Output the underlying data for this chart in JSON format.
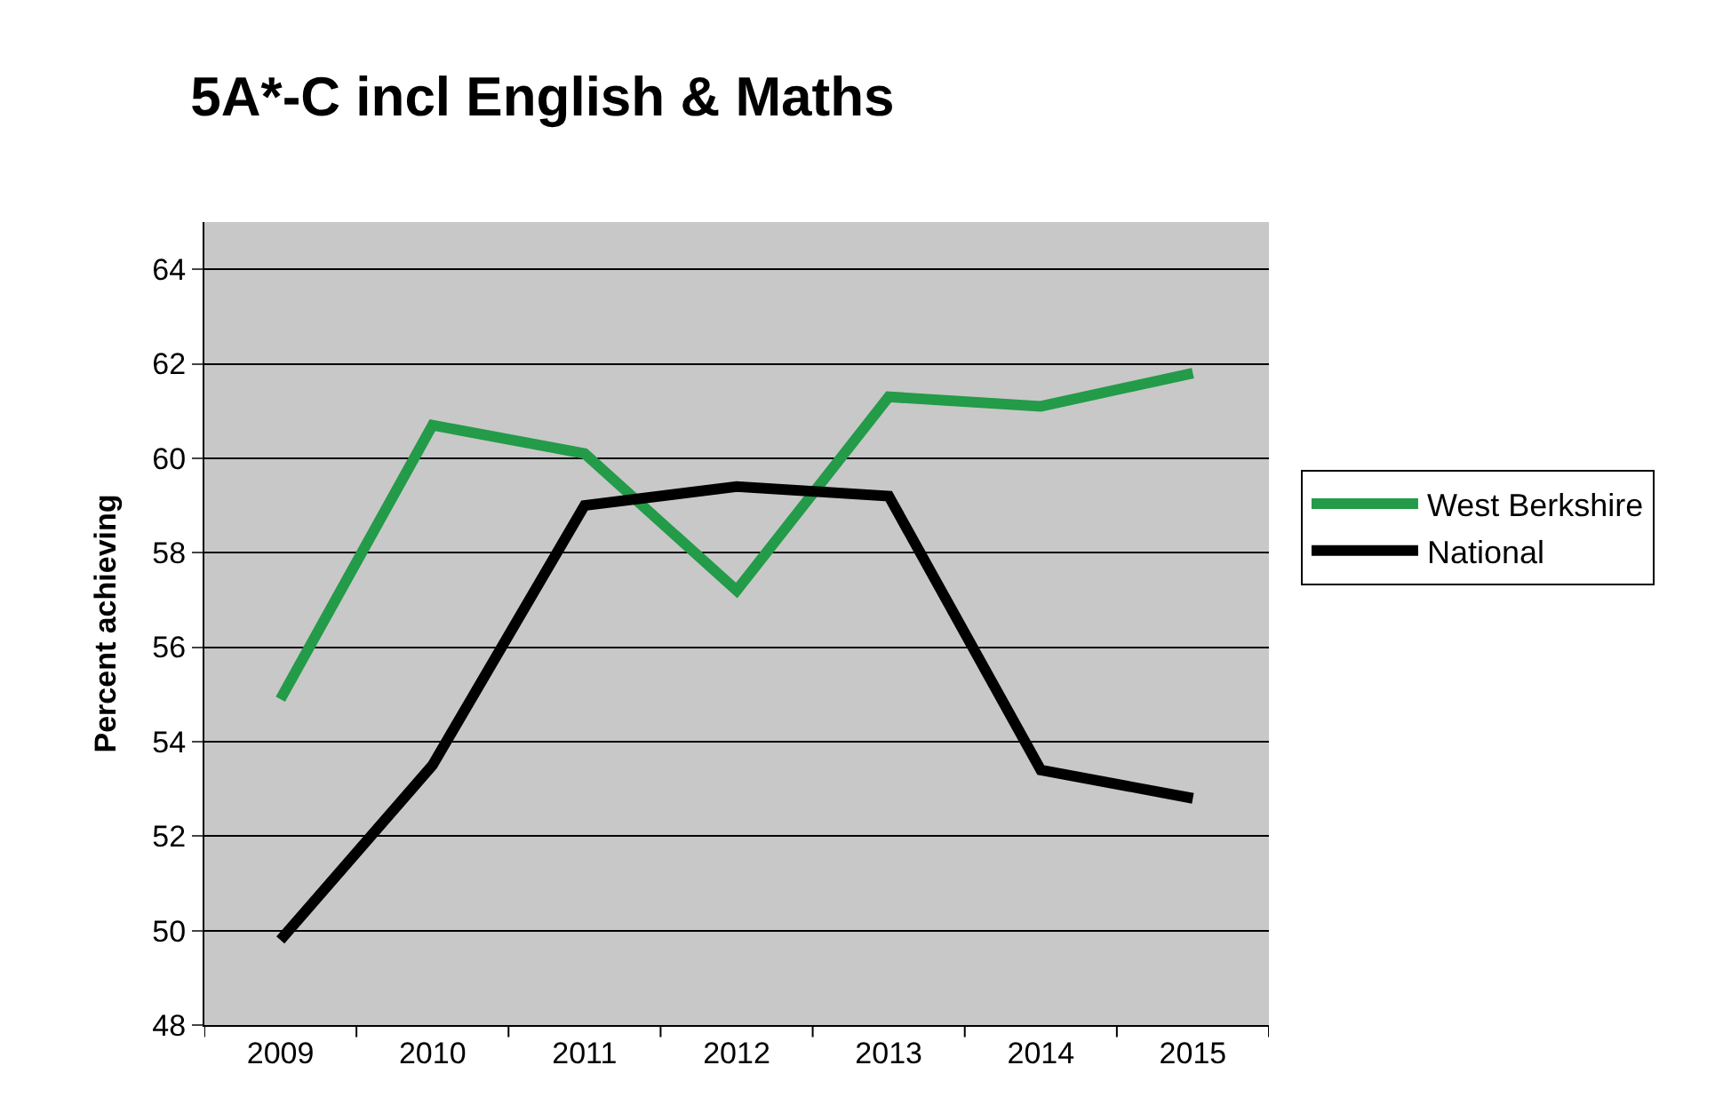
{
  "chart_data": {
    "type": "line",
    "title": "5A*-C incl English & Maths",
    "ylabel": "Percent achieving",
    "categories": [
      "2009",
      "2010",
      "2011",
      "2012",
      "2013",
      "2014",
      "2015"
    ],
    "series": [
      {
        "name": "West Berkshire",
        "color": "#239b48",
        "values": [
          54.9,
          60.7,
          60.1,
          57.2,
          61.3,
          61.1,
          61.8
        ]
      },
      {
        "name": "National",
        "color": "#000000",
        "values": [
          49.8,
          53.5,
          59.0,
          59.4,
          59.2,
          53.4,
          52.8
        ]
      }
    ],
    "ylim": [
      48,
      65
    ],
    "yticks": [
      48,
      50,
      52,
      54,
      56,
      58,
      60,
      62,
      64
    ],
    "grid": "y",
    "legend": "right",
    "marker": "none",
    "line_style": "solid"
  }
}
